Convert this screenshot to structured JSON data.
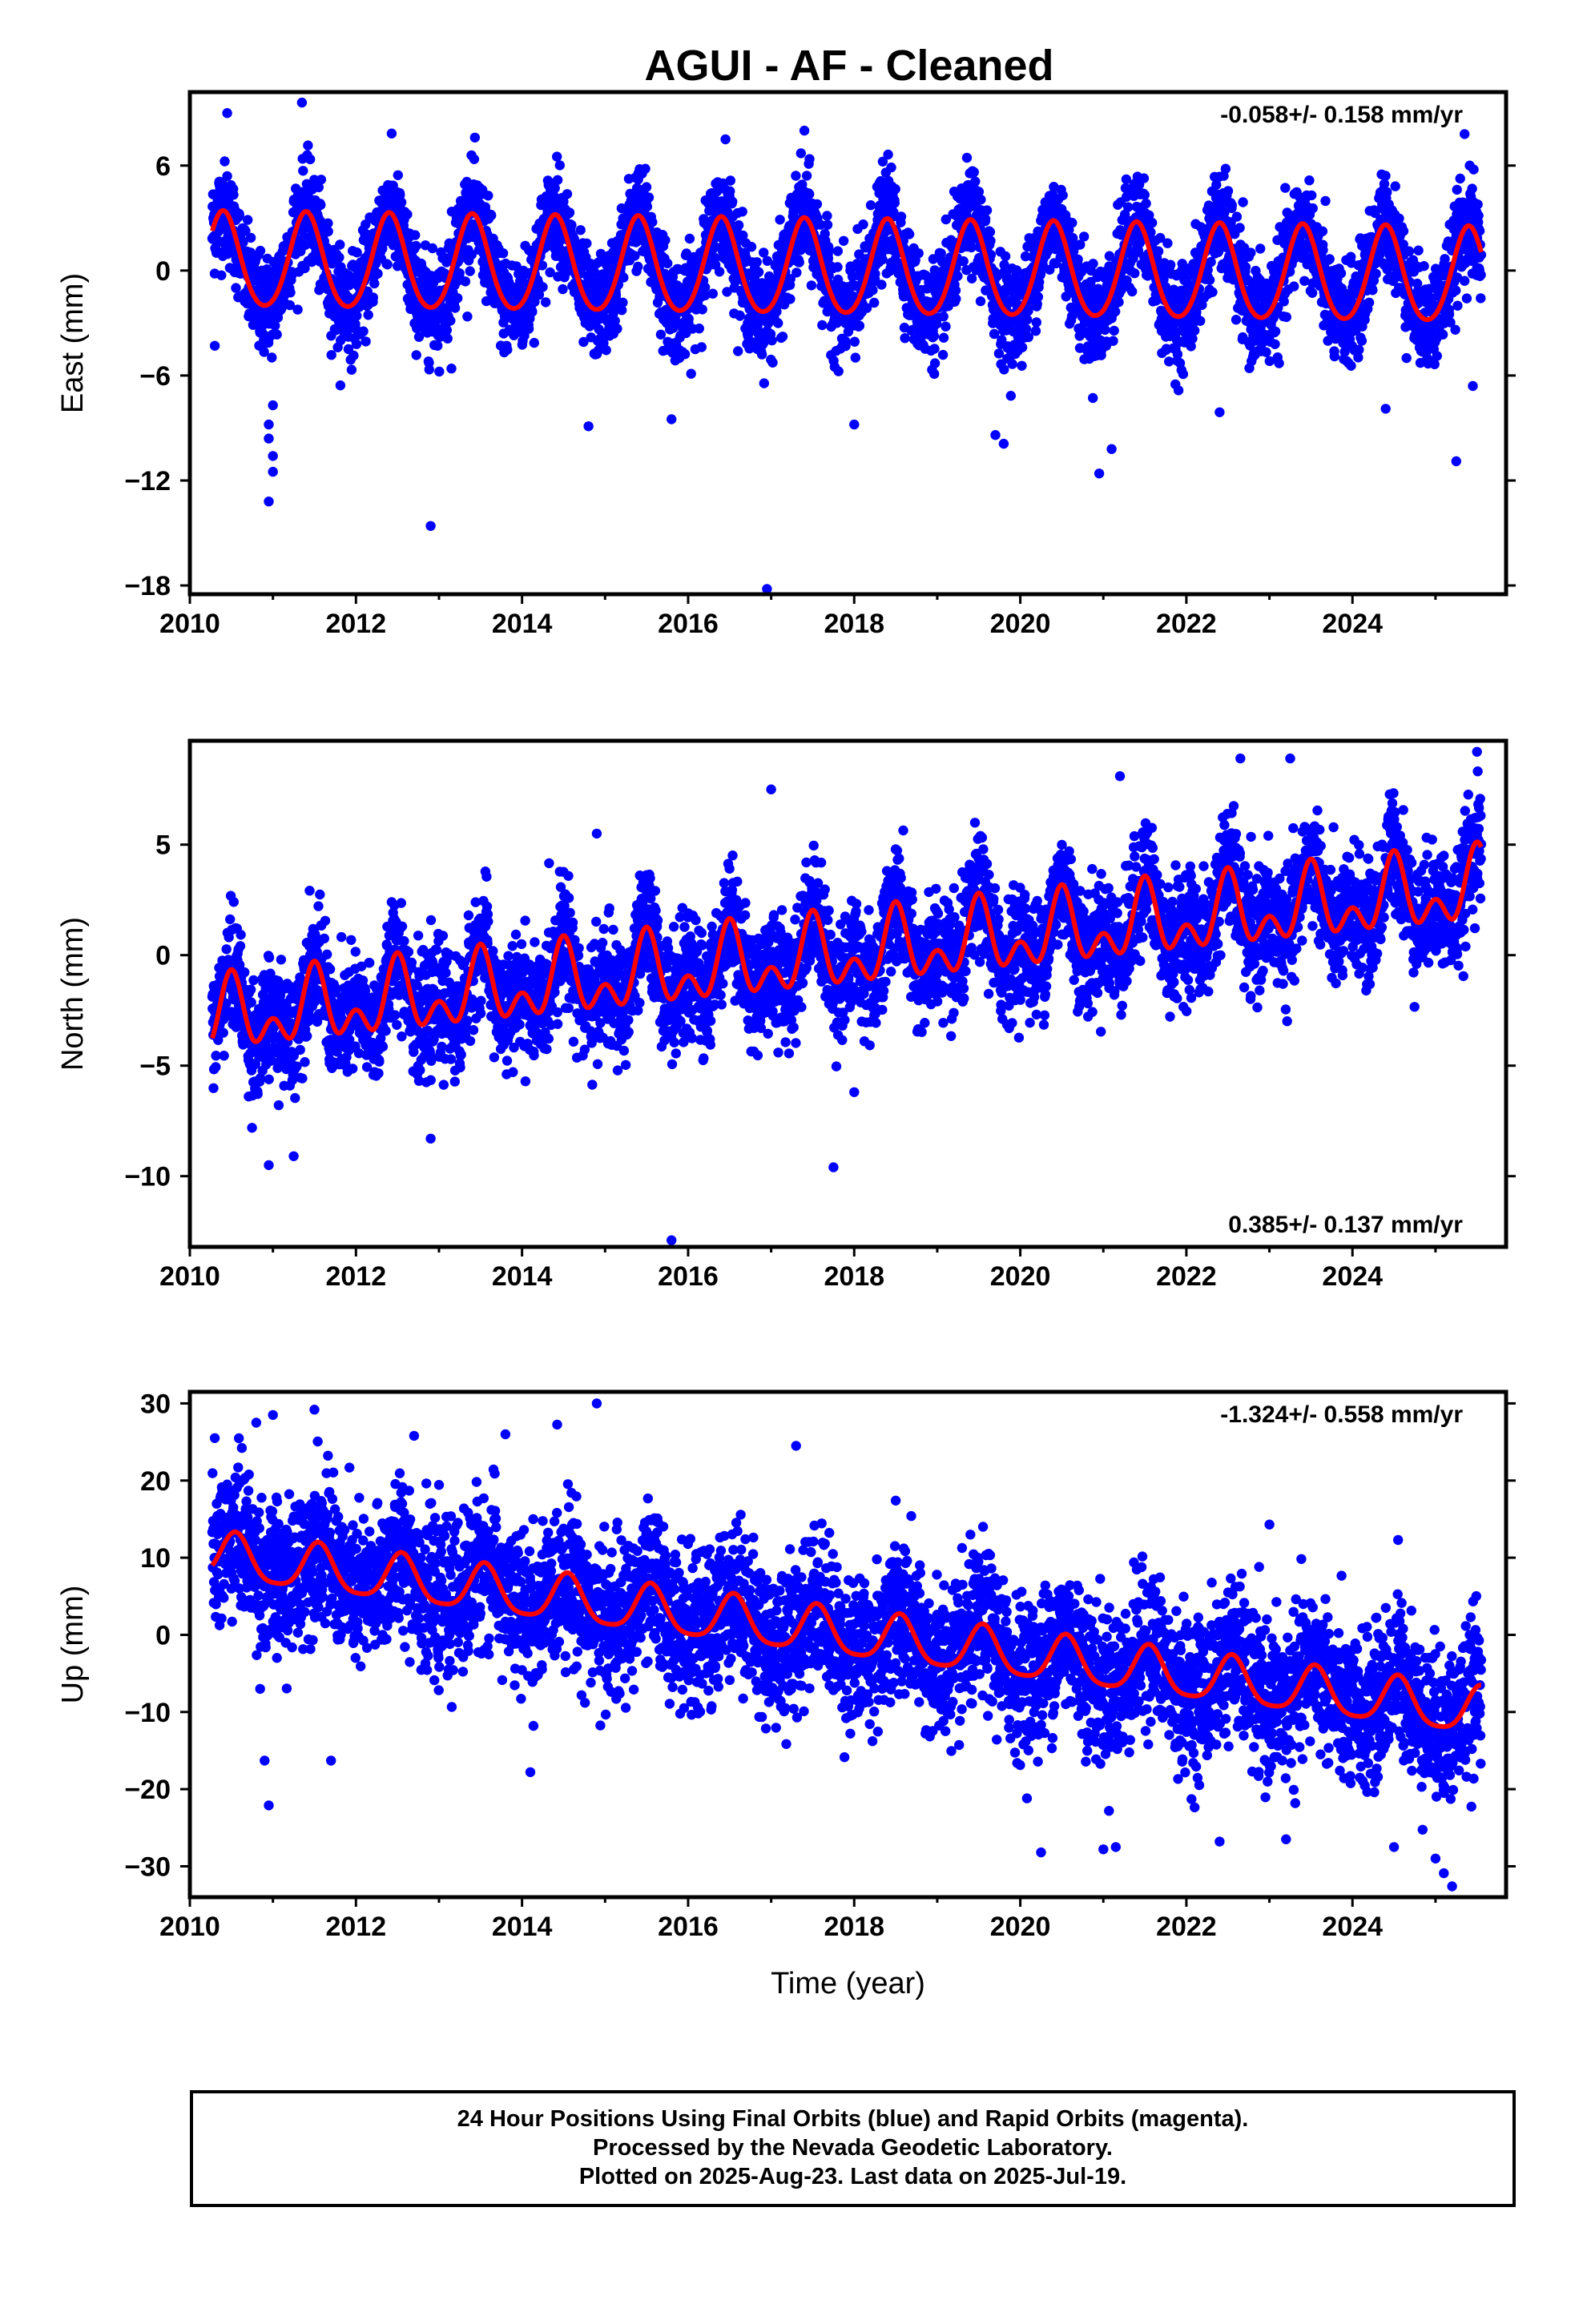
{
  "title": "AGUI  - AF - Cleaned",
  "caption": {
    "line1": "24 Hour Positions Using Final Orbits (blue) and Rapid Orbits (magenta).",
    "line2": "Processed by the Nevada Geodetic Laboratory.",
    "line3": "Plotted on 2025-Aug-23. Last data on 2025-Jul-19."
  },
  "colors": {
    "points": "#0000ff",
    "fit": "#ff0000",
    "frame": "#000000"
  },
  "chart_data": [
    {
      "type": "scatter",
      "ylabel": "East (mm)",
      "xlabel": "",
      "rate_text": "-0.058+/- 0.158 mm/yr",
      "rate_position": "top-right",
      "xlim": [
        2010,
        2025.85
      ],
      "ylim": [
        -18.5,
        10.2
      ],
      "xticks": [
        2010,
        2012,
        2014,
        2016,
        2018,
        2020,
        2022,
        2024
      ],
      "xtick_labels": [
        "2010",
        "2012",
        "2014",
        "2016",
        "2018",
        "2020",
        "2022",
        "2024"
      ],
      "yticks": [
        -18,
        -12,
        -6,
        0,
        6
      ],
      "ytick_labels": [
        "−18",
        "−12",
        "−6",
        "0",
        "6"
      ],
      "grid": false,
      "series": [
        {
          "kind": "points",
          "color": "#0000ff",
          "x_range": [
            2010.27,
            2025.55
          ],
          "trend_mm_per_yr": -0.058,
          "mean": 0.0,
          "annual_amplitude": 2.7,
          "annual_phase_peak": 0.4,
          "semiannual_amplitude": 0.3,
          "scatter_sd": 1.4
        },
        {
          "kind": "fit",
          "color": "#ff0000",
          "x_range": [
            2010.27,
            2025.55
          ],
          "annual_amplitude": 2.7,
          "annual_phase_peak": 0.4,
          "semiannual_amplitude": 0.3
        }
      ],
      "outliers": [
        {
          "x": 2010.3,
          "y": -4.3
        },
        {
          "x": 2010.95,
          "y": -8.8
        },
        {
          "x": 2010.95,
          "y": -9.6
        },
        {
          "x": 2011.0,
          "y": -10.6
        },
        {
          "x": 2011.0,
          "y": -11.5
        },
        {
          "x": 2010.95,
          "y": -13.2
        },
        {
          "x": 2011.0,
          "y": -7.7
        },
        {
          "x": 2012.9,
          "y": -14.6
        },
        {
          "x": 2013.15,
          "y": -5.6
        },
        {
          "x": 2014.8,
          "y": -8.9
        },
        {
          "x": 2015.8,
          "y": -8.5
        },
        {
          "x": 2016.95,
          "y": -18.2
        },
        {
          "x": 2018.0,
          "y": -8.8
        },
        {
          "x": 2019.7,
          "y": -9.4
        },
        {
          "x": 2019.8,
          "y": -9.9
        },
        {
          "x": 2020.95,
          "y": -11.6
        },
        {
          "x": 2021.1,
          "y": -10.2
        },
        {
          "x": 2022.4,
          "y": -8.1
        },
        {
          "x": 2024.4,
          "y": -7.9
        },
        {
          "x": 2025.25,
          "y": -10.9
        },
        {
          "x": 2025.45,
          "y": -6.6
        },
        {
          "x": 2010.45,
          "y": 9.0
        },
        {
          "x": 2011.35,
          "y": 9.6
        },
        {
          "x": 2017.4,
          "y": 8.0
        },
        {
          "x": 2016.45,
          "y": 7.5
        },
        {
          "x": 2025.35,
          "y": 7.8
        }
      ]
    },
    {
      "type": "scatter",
      "ylabel": "North (mm)",
      "xlabel": "",
      "rate_text": "0.385+/- 0.137 mm/yr",
      "rate_position": "bottom-right",
      "xlim": [
        2010,
        2025.85
      ],
      "ylim": [
        -13.2,
        9.7
      ],
      "xticks": [
        2010,
        2012,
        2014,
        2016,
        2018,
        2020,
        2022,
        2024
      ],
      "xtick_labels": [
        "2010",
        "2012",
        "2014",
        "2016",
        "2018",
        "2020",
        "2022",
        "2024"
      ],
      "yticks": [
        -10,
        -5,
        0,
        5
      ],
      "ytick_labels": [
        "−10",
        "−5",
        "0",
        "5"
      ],
      "grid": false,
      "series": [
        {
          "kind": "points",
          "color": "#0000ff",
          "x_range": [
            2010.27,
            2025.55
          ],
          "trend_mm_per_yr": 0.385,
          "mean": 0.0,
          "annual_amplitude": 1.2,
          "annual_phase_peak": 0.5,
          "semiannual_amplitude": 1.0,
          "scatter_sd": 1.3
        },
        {
          "kind": "fit",
          "color": "#ff0000",
          "x_range": [
            2010.27,
            2025.55
          ],
          "annual_amplitude": 1.2,
          "annual_phase_peak": 0.5,
          "semiannual_amplitude": 1.0
        }
      ],
      "outliers": [
        {
          "x": 2010.95,
          "y": -9.5
        },
        {
          "x": 2011.25,
          "y": -9.1
        },
        {
          "x": 2012.9,
          "y": -8.3
        },
        {
          "x": 2015.8,
          "y": -12.9
        },
        {
          "x": 2017.75,
          "y": -9.6
        },
        {
          "x": 2017.0,
          "y": 7.5
        },
        {
          "x": 2022.65,
          "y": 8.9
        },
        {
          "x": 2023.25,
          "y": 8.9
        },
        {
          "x": 2025.5,
          "y": 9.2
        },
        {
          "x": 2014.9,
          "y": 5.5
        },
        {
          "x": 2021.2,
          "y": 8.1
        },
        {
          "x": 2018.0,
          "y": -6.2
        }
      ]
    },
    {
      "type": "scatter",
      "ylabel": "Up (mm)",
      "xlabel": "Time (year)",
      "rate_text": "-1.324+/- 0.558 mm/yr",
      "rate_position": "top-right",
      "xlim": [
        2010,
        2025.85
      ],
      "ylim": [
        -34,
        31.5
      ],
      "xticks": [
        2010,
        2012,
        2014,
        2016,
        2018,
        2020,
        2022,
        2024
      ],
      "xtick_labels": [
        "2010",
        "2012",
        "2014",
        "2016",
        "2018",
        "2020",
        "2022",
        "2024"
      ],
      "yticks": [
        -30,
        -20,
        -10,
        0,
        10,
        20,
        30
      ],
      "ytick_labels": [
        "−30",
        "−20",
        "−10",
        "0",
        "10",
        "20",
        "30"
      ],
      "grid": false,
      "series": [
        {
          "kind": "points",
          "color": "#0000ff",
          "x_range": [
            2010.27,
            2025.55
          ],
          "trend_mm_per_yr": -1.324,
          "mean": 0.0,
          "annual_amplitude": 3.0,
          "annual_phase_peak": 0.55,
          "semiannual_amplitude": 0.6,
          "scatter_sd": 4.8
        },
        {
          "kind": "fit",
          "color": "#ff0000",
          "x_range": [
            2010.27,
            2025.55
          ],
          "annual_amplitude": 3.0,
          "annual_phase_peak": 0.55,
          "semiannual_amplitude": 0.6
        }
      ],
      "outliers": [
        {
          "x": 2010.3,
          "y": 25.5
        },
        {
          "x": 2010.8,
          "y": 27.5
        },
        {
          "x": 2011.0,
          "y": 28.5
        },
        {
          "x": 2011.5,
          "y": 29.2
        },
        {
          "x": 2012.7,
          "y": 25.8
        },
        {
          "x": 2013.8,
          "y": 26.0
        },
        {
          "x": 2014.9,
          "y": 30.0
        },
        {
          "x": 2017.3,
          "y": 24.5
        },
        {
          "x": 2010.9,
          "y": -16.3
        },
        {
          "x": 2010.95,
          "y": -22.1
        },
        {
          "x": 2011.7,
          "y": -16.3
        },
        {
          "x": 2014.1,
          "y": -17.8
        },
        {
          "x": 2020.25,
          "y": -28.2
        },
        {
          "x": 2021.0,
          "y": -27.8
        },
        {
          "x": 2021.15,
          "y": -27.5
        },
        {
          "x": 2022.4,
          "y": -26.8
        },
        {
          "x": 2023.2,
          "y": -26.5
        },
        {
          "x": 2024.5,
          "y": -27.5
        },
        {
          "x": 2025.0,
          "y": -29.0
        },
        {
          "x": 2025.2,
          "y": -32.6
        },
        {
          "x": 2025.1,
          "y": -30.9
        },
        {
          "x": 2024.55,
          "y": 12.3
        },
        {
          "x": 2023.0,
          "y": 14.3
        },
        {
          "x": 2018.5,
          "y": 17.4
        }
      ]
    }
  ]
}
